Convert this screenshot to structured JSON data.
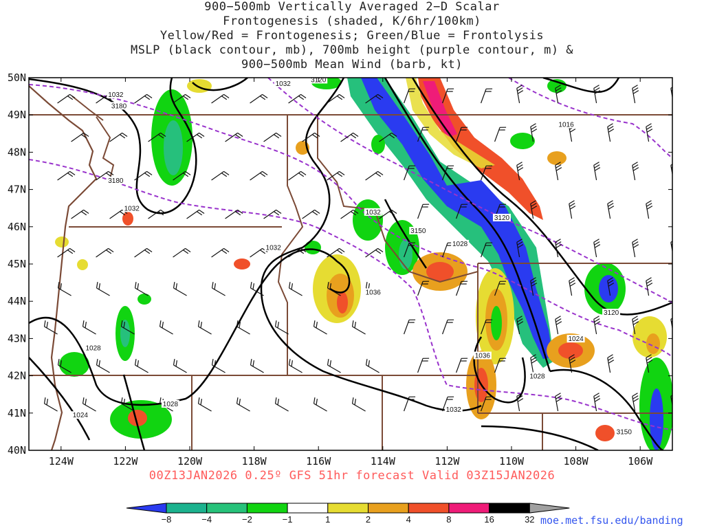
{
  "title_lines": [
    "900−500mb Vertically Averaged 2−D Scalar",
    "Frontogenesis (shaded, K/6hr/100km)",
    "Yellow/Red = Frontogenesis;  Green/Blue = Frontolysis",
    "MSLP (black contour, mb), 700mb height (purple contour, m) &",
    "900−500mb Mean Wind (barb, kt)"
  ],
  "valid_line": "00Z13JAN2026 0.25º GFS 51hr forecast Valid 03Z15JAN2026",
  "credit": "moe.met.fsu.edu/banding",
  "map": {
    "lon_range": [
      -125,
      -105
    ],
    "lat_range": [
      40,
      50
    ],
    "lat_ticks": [
      "50N",
      "49N",
      "48N",
      "47N",
      "46N",
      "45N",
      "44N",
      "43N",
      "42N",
      "41N",
      "40N"
    ],
    "lon_ticks": [
      "124W",
      "122W",
      "120W",
      "118W",
      "116W",
      "114W",
      "112W",
      "110W",
      "108W",
      "106W"
    ],
    "pressure_labels": [
      {
        "text": "1032",
        "lon": -122.3,
        "lat": 49.5
      },
      {
        "text": "3120",
        "lon": -116.0,
        "lat": 49.9
      },
      {
        "text": "1032",
        "lon": -117.1,
        "lat": 49.8
      },
      {
        "text": "3180",
        "lon": -122.2,
        "lat": 49.2
      },
      {
        "text": "3180",
        "lon": -122.3,
        "lat": 47.2
      },
      {
        "text": "1032",
        "lon": -121.8,
        "lat": 46.45
      },
      {
        "text": "1032",
        "lon": -114.3,
        "lat": 46.35
      },
      {
        "text": "1032",
        "lon": -117.4,
        "lat": 45.4
      },
      {
        "text": "3150",
        "lon": -112.9,
        "lat": 45.85
      },
      {
        "text": "1028",
        "lon": -111.6,
        "lat": 45.5
      },
      {
        "text": "3120",
        "lon": -110.3,
        "lat": 46.2
      },
      {
        "text": "1016",
        "lon": -108.3,
        "lat": 48.7
      },
      {
        "text": "1036",
        "lon": -114.3,
        "lat": 44.2
      },
      {
        "text": "3120",
        "lon": -106.9,
        "lat": 43.65
      },
      {
        "text": "1024",
        "lon": -108.0,
        "lat": 42.95
      },
      {
        "text": "1036",
        "lon": -110.9,
        "lat": 42.5
      },
      {
        "text": "1028",
        "lon": -109.2,
        "lat": 41.95
      },
      {
        "text": "1028",
        "lon": -123.0,
        "lat": 42.7
      },
      {
        "text": "1028",
        "lon": -120.6,
        "lat": 41.2
      },
      {
        "text": "1024",
        "lon": -123.4,
        "lat": 40.9
      },
      {
        "text": "1032",
        "lon": -111.8,
        "lat": 41.05
      },
      {
        "text": "3150",
        "lon": -106.5,
        "lat": 40.45
      }
    ]
  },
  "colorbar": {
    "labels": [
      "−8",
      "−4",
      "−2",
      "−1",
      "1",
      "2",
      "4",
      "8",
      "16",
      "32"
    ],
    "colors": [
      "#2a3bf0",
      "#1cb28e",
      "#27c27a",
      "#11d411",
      "#ffffff",
      "#e6dc32",
      "#e8a01e",
      "#f0502a",
      "#ef1c78",
      "#000000",
      "#a0a0a0"
    ]
  }
}
